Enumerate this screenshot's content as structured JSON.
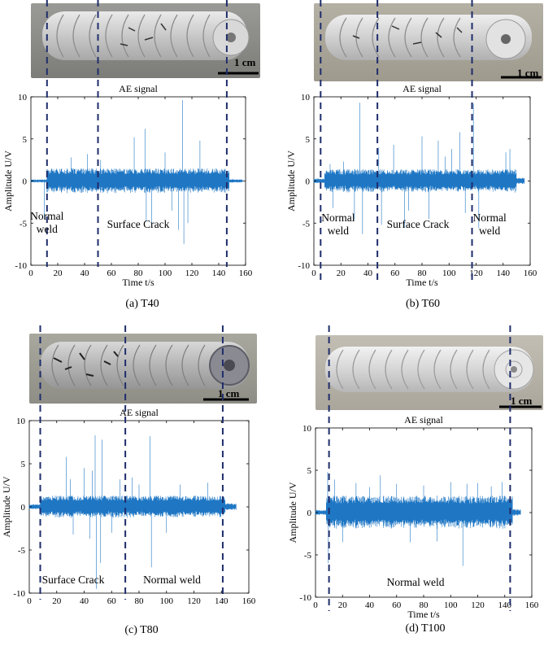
{
  "scale_bar_label": "1 cm",
  "colors": {
    "signal": "#1f77c4",
    "dashed": "#1f2d6b",
    "axis": "#000000"
  },
  "panels": [
    {
      "id": "a",
      "caption": "(a) T40",
      "region_labels": [
        {
          "text": "Normal\nweld",
          "x": 12
        },
        {
          "text": "Surface Crack",
          "x": 80
        }
      ]
    },
    {
      "id": "b",
      "caption": "(b) T60",
      "region_labels": [
        {
          "text": "Normal\nweld",
          "x": 18
        },
        {
          "text": "Surface Crack",
          "x": 77
        },
        {
          "text": "Normal\nweld",
          "x": 130
        }
      ]
    },
    {
      "id": "c",
      "caption": "(c) T80",
      "region_labels": [
        {
          "text": "Surface Crack",
          "x": 32
        },
        {
          "text": "Normal weld",
          "x": 104
        }
      ]
    },
    {
      "id": "d",
      "caption": "(d) T100",
      "region_labels": [
        {
          "text": "Normal weld",
          "x": 74
        }
      ]
    }
  ],
  "chart_data": [
    {
      "type": "line",
      "title": "AE signal",
      "xlabel": "Time t/s",
      "ylabel": "Amplitude U/V",
      "xlim": [
        0,
        160
      ],
      "ylim": [
        -10,
        10
      ],
      "xticks": [
        0,
        20,
        40,
        60,
        80,
        100,
        120,
        140,
        160
      ],
      "yticks": [
        -10,
        -5,
        0,
        5,
        10
      ],
      "series": [
        {
          "segments": [
            {
              "t0": 0,
              "t1": 12,
              "env": 0.2
            },
            {
              "t0": 12,
              "t1": 148,
              "env": 1.5
            },
            {
              "t0": 148,
              "t1": 158,
              "env": 0.2
            }
          ],
          "spikes": [
            [
              10,
              -4.5
            ],
            [
              30,
              2.8
            ],
            [
              42,
              3.2
            ],
            [
              52,
              2.5
            ],
            [
              77,
              5.2
            ],
            [
              85,
              6.2
            ],
            [
              86,
              -4.8
            ],
            [
              90,
              -5.5
            ],
            [
              100,
              3.4
            ],
            [
              105,
              -3.5
            ],
            [
              110,
              -5.8
            ],
            [
              113,
              9.6
            ],
            [
              114,
              -7.5
            ],
            [
              117,
              -5
            ],
            [
              126,
              4.8
            ]
          ]
        }
      ],
      "dashed_lines": [
        12,
        50,
        146
      ]
    },
    {
      "type": "line",
      "title": "AE signal",
      "xlabel": "Time t/s",
      "ylabel": "Amplitude U/V",
      "xlim": [
        0,
        160
      ],
      "ylim": [
        -10,
        10
      ],
      "xticks": [
        0,
        20,
        40,
        60,
        80,
        100,
        120,
        140,
        160
      ],
      "yticks": [
        -10,
        -5,
        0,
        5,
        10
      ],
      "series": [
        {
          "segments": [
            {
              "t0": 0,
              "t1": 8,
              "env": 0.3
            },
            {
              "t0": 8,
              "t1": 150,
              "env": 1.4
            },
            {
              "t0": 150,
              "t1": 156,
              "env": 0.4
            }
          ],
          "spikes": [
            [
              12,
              2.0
            ],
            [
              14,
              -3.2
            ],
            [
              22,
              2.3
            ],
            [
              30,
              -4.6
            ],
            [
              34,
              9.3
            ],
            [
              36,
              -6.3
            ],
            [
              48,
              4.0
            ],
            [
              50,
              -5.2
            ],
            [
              59,
              4.3
            ],
            [
              67,
              -5.5
            ],
            [
              70,
              -3.5
            ],
            [
              80,
              5.3
            ],
            [
              85,
              -4.5
            ],
            [
              92,
              4.8
            ],
            [
              97,
              2.9
            ],
            [
              102,
              3.8
            ],
            [
              108,
              5.8
            ],
            [
              112,
              -3.8
            ],
            [
              118,
              9.2
            ],
            [
              122,
              -5.6
            ],
            [
              142,
              3.4
            ],
            [
              145,
              3.8
            ]
          ]
        }
      ],
      "dashed_lines": [
        5,
        47,
        117
      ]
    },
    {
      "type": "line",
      "title": "AE signal",
      "xlabel": "",
      "ylabel": "Amplitude U/V",
      "xlim": [
        0,
        160
      ],
      "ylim": [
        -10,
        10
      ],
      "xticks": [
        0,
        20,
        40,
        60,
        80,
        100,
        120,
        140,
        160
      ],
      "yticks": [
        -10,
        -5,
        0,
        5,
        10
      ],
      "series": [
        {
          "segments": [
            {
              "t0": 0,
              "t1": 8,
              "env": 0.3
            },
            {
              "t0": 8,
              "t1": 143,
              "env": 1.3
            },
            {
              "t0": 143,
              "t1": 151,
              "env": 0.4
            }
          ],
          "spikes": [
            [
              27,
              5.8
            ],
            [
              30,
              3.2
            ],
            [
              32,
              -3.2
            ],
            [
              40,
              4.5
            ],
            [
              44,
              -3.7
            ],
            [
              46,
              4.2
            ],
            [
              48,
              8.3
            ],
            [
              49,
              -9.5
            ],
            [
              52,
              -6.5
            ],
            [
              53,
              7.8
            ],
            [
              60,
              -3.0
            ],
            [
              66,
              3.2
            ],
            [
              75,
              3.4
            ],
            [
              80,
              2.6
            ],
            [
              88,
              8.2
            ],
            [
              89,
              -7.0
            ],
            [
              100,
              -3.0
            ],
            [
              110,
              2.6
            ],
            [
              130,
              2.8
            ]
          ]
        }
      ],
      "dashed_lines": [
        8,
        70,
        141
      ]
    },
    {
      "type": "line",
      "title": "AE signal",
      "xlabel": "Time t/s",
      "ylabel": "Amplitude U/V",
      "xlim": [
        0,
        160
      ],
      "ylim": [
        -10,
        10
      ],
      "xticks": [
        0,
        20,
        40,
        60,
        80,
        100,
        120,
        140,
        160
      ],
      "yticks": [
        -10,
        -5,
        0,
        5,
        10
      ],
      "series": [
        {
          "segments": [
            {
              "t0": 0,
              "t1": 8,
              "env": 0.3
            },
            {
              "t0": 8,
              "t1": 146,
              "env": 2.0
            },
            {
              "t0": 146,
              "t1": 152,
              "env": 0.4
            }
          ],
          "spikes": [
            [
              9,
              4.8
            ],
            [
              9.5,
              -6.0
            ],
            [
              14,
              3.9
            ],
            [
              20,
              -3.5
            ],
            [
              30,
              3.5
            ],
            [
              40,
              3.0
            ],
            [
              48,
              4.4
            ],
            [
              60,
              3.4
            ],
            [
              70,
              -3.5
            ],
            [
              80,
              3.2
            ],
            [
              90,
              -3.4
            ],
            [
              100,
              3.6
            ],
            [
              109,
              -6.3
            ],
            [
              112,
              3.4
            ],
            [
              120,
              3.5
            ],
            [
              130,
              3.1
            ],
            [
              138,
              3.6
            ]
          ]
        }
      ],
      "dashed_lines": [
        10,
        144
      ]
    }
  ]
}
